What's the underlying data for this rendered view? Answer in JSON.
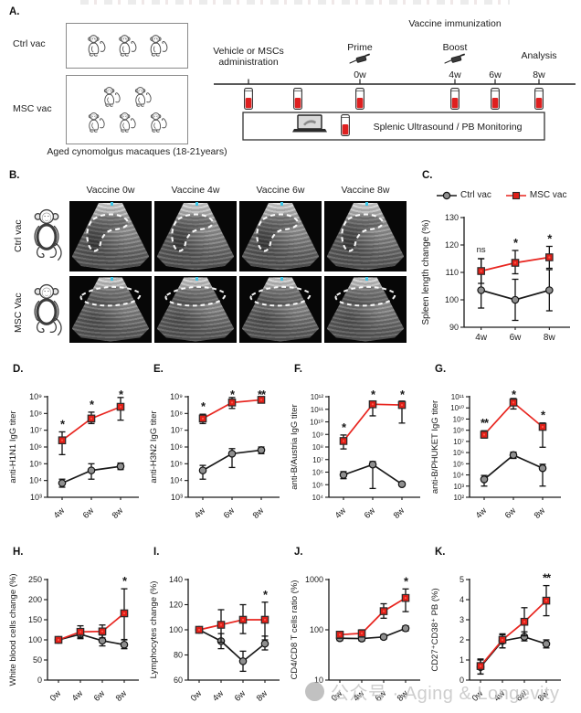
{
  "panel_a": {
    "label": "A.",
    "groups": [
      {
        "name": "Ctrl vac",
        "monkeys": 3
      },
      {
        "name": "MSC vac",
        "monkeys": 5
      }
    ],
    "caption": "Aged cynomolgus macaques (18-21years)",
    "timeline": {
      "admin_label_line1": "Vehicle or MSCs",
      "admin_label_line2": "administration",
      "immunization_label": "Vaccine immunization",
      "prime_label": "Prime",
      "boost_label": "Boost",
      "analysis_label": "Analysis",
      "timepoints": [
        "0w",
        "4w",
        "6w",
        "8w"
      ],
      "monitor_label": "Splenic Ultrasound / PB Monitoring"
    }
  },
  "panel_b": {
    "label": "B.",
    "col_headers": [
      "Vaccine 0w",
      "Vaccine 4w",
      "Vaccine 6w",
      "Vaccine 8w"
    ],
    "row_labels": [
      "Ctrl vac",
      "MSC Vac"
    ]
  },
  "legend": {
    "ctrl": "Ctrl vac",
    "msc": "MSC vac"
  },
  "colors": {
    "msc_line": "#e8251f",
    "msc_fill": "#e02019",
    "ctrl_line": "#1a1a1a",
    "ctrl_fill": "#8f8f8f",
    "error_bar": "#111111"
  },
  "watermark": {
    "text": "公众号 · Aging & Longevity"
  },
  "chart_data": [
    {
      "id": "C",
      "label": "C.",
      "type": "line",
      "ylabel": "Spleen length change (%)",
      "yscale": "linear",
      "ymin": 90,
      "ymax": 130,
      "yticks": [
        {
          "v": 90,
          "l": "90"
        },
        {
          "v": 100,
          "l": "100"
        },
        {
          "v": 110,
          "l": "110"
        },
        {
          "v": 120,
          "l": "120"
        },
        {
          "v": 130,
          "l": "130"
        }
      ],
      "categories": [
        "4w",
        "6w",
        "8w"
      ],
      "rotate_x": false,
      "series": [
        {
          "name": "Ctrl vac",
          "marker": "circle",
          "line": "#1a1a1a",
          "fill": "#8f8f8f",
          "values": [
            103.5,
            100,
            103.5
          ],
          "err_lo": [
            97,
            92.5,
            96
          ],
          "err_hi": [
            115,
            107.5,
            111
          ]
        },
        {
          "name": "MSC vac",
          "marker": "square",
          "line": "#e8251f",
          "fill": "#e02019",
          "values": [
            110.5,
            113.5,
            115.5
          ],
          "err_lo": [
            106,
            109.5,
            111.5
          ],
          "err_hi": [
            115,
            118,
            119.5
          ]
        }
      ],
      "sig": [
        "ns",
        "*",
        "*"
      ]
    },
    {
      "id": "D",
      "label": "D.",
      "type": "line",
      "ylabel": "anti-H1N1 IgG titer",
      "yscale": "log",
      "ymin": 1000.0,
      "ymax": 1000000000.0,
      "yticks": [
        {
          "v": 1000.0,
          "l": "10³"
        },
        {
          "v": 10000.0,
          "l": "10⁴"
        },
        {
          "v": 100000.0,
          "l": "10⁵"
        },
        {
          "v": 1000000.0,
          "l": "10⁶"
        },
        {
          "v": 10000000.0,
          "l": "10⁷"
        },
        {
          "v": 100000000.0,
          "l": "10⁸"
        },
        {
          "v": 1000000000.0,
          "l": "10⁹"
        }
      ],
      "categories": [
        "4w",
        "6w",
        "8w"
      ],
      "rotate_x": true,
      "series": [
        {
          "name": "Ctrl vac",
          "marker": "circle",
          "line": "#1a1a1a",
          "fill": "#8f8f8f",
          "values": [
            7000.0,
            40000.0,
            70000.0
          ],
          "err_lo": [
            4000.0,
            12000.0,
            45000.0
          ],
          "err_hi": [
            12000.0,
            100000.0,
            110000.0
          ]
        },
        {
          "name": "MSC vac",
          "marker": "square",
          "line": "#e8251f",
          "fill": "#e02019",
          "values": [
            2500000.0,
            50000000.0,
            250000000.0
          ],
          "err_lo": [
            350000.0,
            25000000.0,
            40000000.0
          ],
          "err_hi": [
            8000000.0,
            120000000.0,
            900000000.0
          ]
        }
      ],
      "sig": [
        "*",
        "*",
        "*"
      ]
    },
    {
      "id": "E",
      "label": "E.",
      "type": "line",
      "ylabel": "anti-H3N2 IgG titer",
      "yscale": "log",
      "ymin": 1000.0,
      "ymax": 1000000000.0,
      "yticks": [
        {
          "v": 1000.0,
          "l": "10³"
        },
        {
          "v": 10000.0,
          "l": "10⁴"
        },
        {
          "v": 100000.0,
          "l": "10⁵"
        },
        {
          "v": 1000000.0,
          "l": "10⁶"
        },
        {
          "v": 10000000.0,
          "l": "10⁷"
        },
        {
          "v": 100000000.0,
          "l": "10⁸"
        },
        {
          "v": 1000000000.0,
          "l": "10⁹"
        }
      ],
      "categories": [
        "4w",
        "6w",
        "8w"
      ],
      "rotate_x": true,
      "series": [
        {
          "name": "Ctrl vac",
          "marker": "circle",
          "line": "#1a1a1a",
          "fill": "#8f8f8f",
          "values": [
            40000.0,
            400000.0,
            650000.0
          ],
          "err_lo": [
            12000.0,
            60000.0,
            400000.0
          ],
          "err_hi": [
            80000.0,
            800000.0,
            1000000.0
          ]
        },
        {
          "name": "MSC vac",
          "marker": "square",
          "line": "#e8251f",
          "fill": "#e02019",
          "values": [
            50000000.0,
            450000000.0,
            650000000.0
          ],
          "err_lo": [
            25000000.0,
            200000000.0,
            500000000.0
          ],
          "err_hi": [
            90000000.0,
            900000000.0,
            1000000000.0
          ]
        }
      ],
      "sig": [
        "*",
        "*",
        "**"
      ]
    },
    {
      "id": "F",
      "label": "F.",
      "type": "line",
      "ylabel": "anti-B/Austria IgG titer",
      "yscale": "log",
      "ymin": 10000.0,
      "ymax": 1000000000000.0,
      "yticks": [
        {
          "v": 10000.0,
          "l": "10⁴"
        },
        {
          "v": 100000.0,
          "l": "10⁵"
        },
        {
          "v": 1000000.0,
          "l": "10⁶"
        },
        {
          "v": 10000000.0,
          "l": "10⁷"
        },
        {
          "v": 100000000.0,
          "l": "10⁸"
        },
        {
          "v": 1000000000.0,
          "l": "10⁹"
        },
        {
          "v": 10000000000.0,
          "l": "10¹⁰"
        },
        {
          "v": 100000000000.0,
          "l": "10¹¹"
        },
        {
          "v": 1000000000000.0,
          "l": "10¹²"
        }
      ],
      "categories": [
        "4w",
        "6w",
        "8w"
      ],
      "rotate_x": true,
      "series": [
        {
          "name": "Ctrl vac",
          "marker": "circle",
          "line": "#1a1a1a",
          "fill": "#8f8f8f",
          "values": [
            600000.0,
            4000000.0,
            110000.0
          ],
          "err_lo": [
            300000.0,
            50000.0,
            80000.0
          ],
          "err_hi": [
            1100000.0,
            7000000.0,
            150000.0
          ]
        },
        {
          "name": "MSC vac",
          "marker": "square",
          "line": "#e8251f",
          "fill": "#e02019",
          "values": [
            300000000.0,
            250000000000.0,
            220000000000.0
          ],
          "err_lo": [
            70000000.0,
            30000000000.0,
            8000000000.0
          ],
          "err_hi": [
            900000000.0,
            450000000000.0,
            450000000000.0
          ]
        }
      ],
      "sig": [
        "*",
        "*",
        "*"
      ]
    },
    {
      "id": "G",
      "label": "G.",
      "type": "line",
      "ylabel": "anti-B/PHUKET IgG titer",
      "yscale": "log",
      "ymin": 100.0,
      "ymax": 100000000000.0,
      "yticks": [
        {
          "v": 100.0,
          "l": "10²"
        },
        {
          "v": 1000.0,
          "l": "10³"
        },
        {
          "v": 10000.0,
          "l": "10⁴"
        },
        {
          "v": 100000.0,
          "l": "10⁵"
        },
        {
          "v": 1000000.0,
          "l": "10⁶"
        },
        {
          "v": 10000000.0,
          "l": "10⁷"
        },
        {
          "v": 100000000.0,
          "l": "10⁸"
        },
        {
          "v": 1000000000.0,
          "l": "10⁹"
        },
        {
          "v": 10000000000.0,
          "l": "10¹⁰"
        },
        {
          "v": 100000000000.0,
          "l": "10¹¹"
        }
      ],
      "categories": [
        "4w",
        "6w",
        "8w"
      ],
      "rotate_x": true,
      "series": [
        {
          "name": "Ctrl vac",
          "marker": "circle",
          "line": "#1a1a1a",
          "fill": "#8f8f8f",
          "values": [
            4000.0,
            600000.0,
            40000.0
          ],
          "err_lo": [
            1000.0,
            300000.0,
            1000.0
          ],
          "err_hi": [
            9000.0,
            1100000.0,
            90000.0
          ]
        },
        {
          "name": "MSC vac",
          "marker": "square",
          "line": "#e8251f",
          "fill": "#e02019",
          "values": [
            40000000.0,
            30000000000.0,
            200000000.0
          ],
          "err_lo": [
            20000000.0,
            8000000000.0,
            3000000.0
          ],
          "err_hi": [
            90000000.0,
            70000000000.0,
            450000000.0
          ]
        }
      ],
      "sig": [
        "**",
        "*",
        "*"
      ]
    },
    {
      "id": "H",
      "label": "H.",
      "type": "line",
      "ylabel": "White blood cells change (%)",
      "yscale": "linear",
      "ymin": 0,
      "ymax": 250,
      "yticks": [
        {
          "v": 0,
          "l": "0"
        },
        {
          "v": 50,
          "l": "50"
        },
        {
          "v": 100,
          "l": "100"
        },
        {
          "v": 150,
          "l": "150"
        },
        {
          "v": 200,
          "l": "200"
        },
        {
          "v": 250,
          "l": "250"
        }
      ],
      "categories": [
        "0w",
        "4w",
        "6w",
        "8w"
      ],
      "rotate_x": true,
      "series": [
        {
          "name": "Ctrl vac",
          "marker": "circle",
          "line": "#1a1a1a",
          "fill": "#8f8f8f",
          "values": [
            100,
            114,
            98,
            88
          ],
          "err_lo": [
            97,
            103,
            85,
            78
          ],
          "err_hi": [
            103,
            127,
            112,
            101
          ]
        },
        {
          "name": "MSC vac",
          "marker": "square",
          "line": "#e8251f",
          "fill": "#e02019",
          "values": [
            100,
            120,
            121,
            166
          ],
          "err_lo": [
            97,
            105,
            105,
            100
          ],
          "err_hi": [
            103,
            135,
            137,
            227
          ]
        }
      ],
      "sig": [
        "",
        "",
        "",
        "*"
      ]
    },
    {
      "id": "I",
      "label": "I.",
      "type": "line",
      "ylabel": "Lymphocytes change (%)",
      "yscale": "linear",
      "ymin": 60,
      "ymax": 140,
      "yticks": [
        {
          "v": 60,
          "l": "60"
        },
        {
          "v": 80,
          "l": "80"
        },
        {
          "v": 100,
          "l": "100"
        },
        {
          "v": 120,
          "l": "120"
        },
        {
          "v": 140,
          "l": "140"
        }
      ],
      "categories": [
        "0w",
        "4w",
        "6w",
        "8w"
      ],
      "rotate_x": true,
      "series": [
        {
          "name": "Ctrl vac",
          "marker": "circle",
          "line": "#1a1a1a",
          "fill": "#8f8f8f",
          "values": [
            100,
            91,
            75,
            89
          ],
          "err_lo": [
            99,
            85,
            67,
            84
          ],
          "err_hi": [
            101,
            97,
            83,
            95
          ]
        },
        {
          "name": "MSC vac",
          "marker": "square",
          "line": "#e8251f",
          "fill": "#e02019",
          "values": [
            100,
            104,
            108,
            108
          ],
          "err_lo": [
            99,
            90,
            97,
            92
          ],
          "err_hi": [
            101,
            116,
            120,
            122
          ]
        }
      ],
      "sig": [
        "",
        "",
        "",
        "*"
      ]
    },
    {
      "id": "J",
      "label": "J.",
      "type": "line",
      "ylabel": "CD4/CD8 T cells ratio (%)",
      "yscale": "log",
      "ymin": 10,
      "ymax": 1000,
      "yticks": [
        {
          "v": 10,
          "l": "10"
        },
        {
          "v": 100,
          "l": "100"
        },
        {
          "v": 1000,
          "l": "1000"
        }
      ],
      "categories": [
        "0w",
        "4w",
        "6w",
        "8w"
      ],
      "rotate_x": true,
      "series": [
        {
          "name": "Ctrl vac",
          "marker": "circle",
          "line": "#1a1a1a",
          "fill": "#8f8f8f",
          "values": [
            68,
            67,
            72,
            107
          ],
          "err_lo": [
            61,
            60,
            65,
            95
          ],
          "err_hi": [
            76,
            75,
            80,
            120
          ]
        },
        {
          "name": "MSC vac",
          "marker": "square",
          "line": "#e8251f",
          "fill": "#e02019",
          "values": [
            80,
            85,
            235,
            430
          ],
          "err_lo": [
            68,
            72,
            170,
            230
          ],
          "err_hi": [
            92,
            100,
            330,
            650
          ]
        }
      ],
      "sig": [
        "",
        "",
        "",
        "*"
      ]
    },
    {
      "id": "K",
      "label": "K.",
      "type": "line",
      "ylabel": "CD27⁺CD38⁺ PB (%)",
      "yscale": "linear",
      "ymin": 0,
      "ymax": 5,
      "yticks": [
        {
          "v": 0,
          "l": "0"
        },
        {
          "v": 1,
          "l": "1"
        },
        {
          "v": 2,
          "l": "2"
        },
        {
          "v": 3,
          "l": "3"
        },
        {
          "v": 4,
          "l": "4"
        },
        {
          "v": 5,
          "l": "5"
        }
      ],
      "categories": [
        "0w",
        "4w",
        "6w",
        "8w"
      ],
      "rotate_x": true,
      "series": [
        {
          "name": "Ctrl vac",
          "marker": "circle",
          "line": "#1a1a1a",
          "fill": "#8f8f8f",
          "values": [
            0.65,
            1.95,
            2.15,
            1.8
          ],
          "err_lo": [
            0.3,
            1.6,
            1.95,
            1.6
          ],
          "err_hi": [
            1.0,
            2.25,
            2.4,
            2.0
          ]
        },
        {
          "name": "MSC vac",
          "marker": "square",
          "line": "#e8251f",
          "fill": "#e02019",
          "values": [
            0.7,
            2.0,
            2.9,
            3.95
          ],
          "err_lo": [
            0.3,
            1.6,
            2.2,
            3.2
          ],
          "err_hi": [
            1.05,
            2.3,
            3.6,
            4.7
          ]
        }
      ],
      "sig": [
        "",
        "",
        "",
        "**"
      ]
    }
  ]
}
